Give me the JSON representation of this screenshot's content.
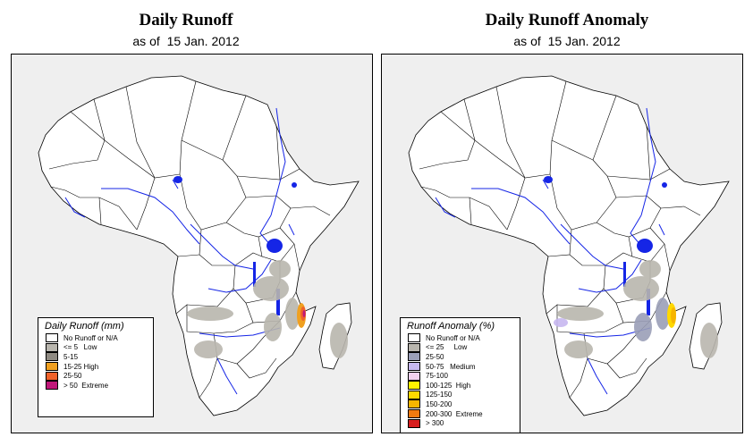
{
  "left_panel": {
    "title": "Daily Runoff",
    "subtitle_prefix": "as of",
    "date": "15 Jan. 2012",
    "legend": {
      "title": "Daily Runoff (mm)",
      "items": [
        {
          "label": "No Runoff or N/A",
          "color": "#ffffff"
        },
        {
          "label": "<= 5   Low",
          "color": "#b9b6ae"
        },
        {
          "label": "5-15",
          "color": "#8f8a82"
        },
        {
          "label": "15-25 High",
          "color": "#f0a020"
        },
        {
          "label": "25-50",
          "color": "#f0622a"
        },
        {
          "label": "> 50  Extreme",
          "color": "#c0187a"
        }
      ]
    }
  },
  "right_panel": {
    "title": "Daily Runoff Anomaly",
    "subtitle_prefix": "as of",
    "date": "15 Jan. 2012",
    "legend": {
      "title": "Runoff Anomaly (%)",
      "items": [
        {
          "label": "No Runoff or N/A",
          "color": "#ffffff"
        },
        {
          "label": "<= 25     Low",
          "color": "#b9b6ae"
        },
        {
          "label": "25-50",
          "color": "#9b9fb8"
        },
        {
          "label": "50-75   Medium",
          "color": "#c7b8f0"
        },
        {
          "label": "75-100",
          "color": "#f3d2f0"
        },
        {
          "label": "100-125  High",
          "color": "#fff200"
        },
        {
          "label": "125-150",
          "color": "#ffd800"
        },
        {
          "label": "150-200",
          "color": "#f7b500"
        },
        {
          "label": "200-300  Extreme",
          "color": "#f07a10"
        },
        {
          "label": "> 300",
          "color": "#d81e1e"
        }
      ]
    }
  },
  "colors": {
    "land": "#ffffff",
    "ocean": "#efefef",
    "water": "#1525e6",
    "border": "#000000",
    "runoff_low": "#b9b6ae"
  }
}
